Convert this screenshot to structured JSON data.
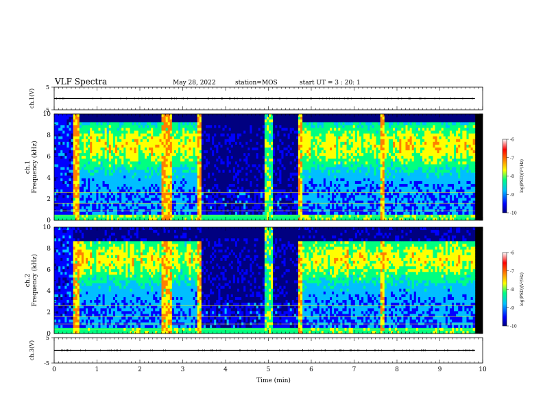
{
  "header": {
    "title": "VLF Spectra",
    "date": "May 28, 2022",
    "station": "station=MOS",
    "start_ut": "start UT =  3 : 20: 1"
  },
  "colors": {
    "colormap": [
      "#000080",
      "#0000ff",
      "#00bfff",
      "#00ff80",
      "#ffff00",
      "#ff8000",
      "#ff0000",
      "#ffffff"
    ],
    "background": "#000000",
    "frame": "#000000"
  },
  "chart_data": [
    {
      "type": "line",
      "panel": "ch1-waveform",
      "ylabel": "ch.1(V)",
      "ylim": [
        -5,
        5
      ],
      "yticks": [
        "5",
        "-5"
      ],
      "series": [
        {
          "x": [
            0,
            10
          ],
          "values": [
            0,
            0
          ]
        }
      ],
      "xlim": [
        0,
        10
      ]
    },
    {
      "type": "heatmap",
      "panel": "ch1-spectrogram",
      "ylabel": "ch.1\nFrequency (kHz)",
      "ylim": [
        0,
        10
      ],
      "yticks": [
        "0",
        "2",
        "4",
        "6",
        "8",
        "10"
      ],
      "xlim": [
        0,
        10
      ],
      "colorbar": {
        "label": "log(PSD)(V²/Hz)",
        "range": [
          -10,
          -6
        ],
        "ticks": [
          "-6",
          "-7",
          "-8",
          "-9",
          "-10"
        ]
      },
      "data_end_min": 9.82,
      "quiet_intervals_min": [
        [
          3.45,
          5.7
        ]
      ],
      "impulsive_bands_min": [
        [
          0.45,
          0.6
        ],
        [
          2.5,
          2.75
        ],
        [
          3.35,
          3.45
        ],
        [
          4.9,
          5.1
        ],
        [
          5.7,
          5.8
        ],
        [
          7.6,
          7.7
        ]
      ],
      "intensity_maximum_kHz": 7
    },
    {
      "type": "heatmap",
      "panel": "ch2-spectrogram",
      "ylabel": "ch.2\nFrequency (kHz)",
      "ylim": [
        0,
        10
      ],
      "yticks": [
        "0",
        "2",
        "4",
        "6",
        "8",
        "10"
      ],
      "xlim": [
        0,
        10
      ],
      "colorbar": {
        "label": "log(PSD)(V²/Hz)",
        "range": [
          -10,
          -6
        ],
        "ticks": [
          "-6",
          "-7",
          "-8",
          "-9",
          "-10"
        ]
      },
      "data_end_min": 9.82,
      "quiet_intervals_min": [
        [
          3.45,
          5.7
        ]
      ],
      "impulsive_bands_min": [
        [
          0.45,
          0.6
        ],
        [
          2.5,
          2.75
        ],
        [
          3.35,
          3.45
        ],
        [
          4.9,
          5.1
        ],
        [
          5.7,
          5.8
        ],
        [
          7.6,
          7.7
        ]
      ],
      "intensity_maximum_kHz": 7
    },
    {
      "type": "line",
      "panel": "ch3-waveform",
      "ylabel": "ch.3(V)",
      "ylim": [
        -5,
        5
      ],
      "yticks": [
        "5",
        "-5"
      ],
      "series": [
        {
          "x": [
            0,
            10
          ],
          "values": [
            0,
            0
          ]
        }
      ],
      "xlim": [
        0,
        10
      ],
      "xlabel": "Time (min)",
      "xticks": [
        "0",
        "1",
        "2",
        "3",
        "4",
        "5",
        "6",
        "7",
        "8",
        "9",
        "10"
      ]
    }
  ]
}
